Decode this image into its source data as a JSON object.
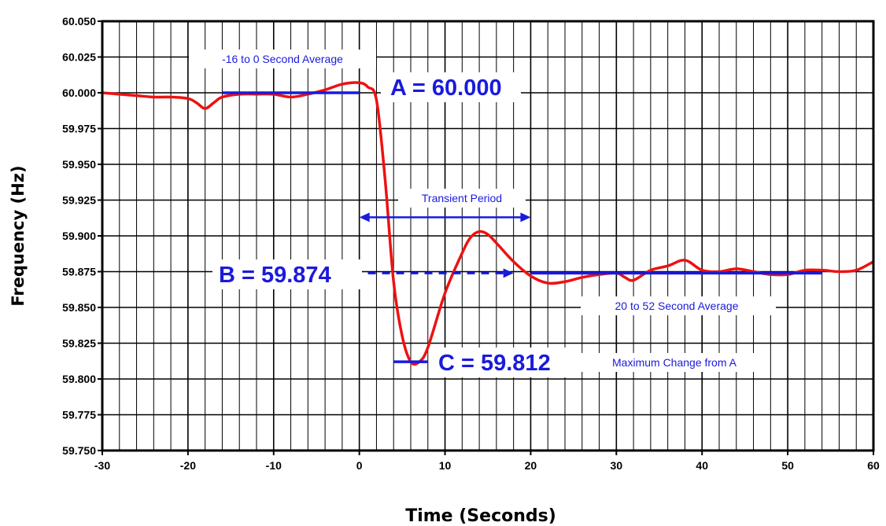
{
  "chart_data": {
    "type": "line",
    "title": "",
    "xlabel": "Time (Seconds)",
    "ylabel": "Frequency (Hz)",
    "xlim": [
      -30,
      60
    ],
    "ylim": [
      59.75,
      60.05
    ],
    "xticks": [
      -30,
      -20,
      -10,
      0,
      10,
      20,
      30,
      40,
      50,
      60
    ],
    "xtick_labels": [
      "-30",
      "-20",
      "-10",
      "0",
      "10",
      "20",
      "30",
      "40",
      "50",
      "60"
    ],
    "yticks": [
      60.05,
      60.025,
      60.0,
      59.975,
      59.95,
      59.925,
      59.9,
      59.875,
      59.85,
      59.825,
      59.8,
      59.775,
      59.75
    ],
    "ytick_labels": [
      "60.050",
      "60.025",
      "60.000",
      "59.975",
      "59.950",
      "59.925",
      "59.900",
      "59.875",
      "59.850",
      "59.825",
      "59.800",
      "59.775",
      "59.750"
    ],
    "grid": {
      "vertical_major": true,
      "vertical_minor_step": 2,
      "horizontal_major": true
    },
    "series": [
      {
        "color": "#ee1111",
        "x": [
          -30,
          -28,
          -26,
          -24,
          -22,
          -20,
          -19,
          -18,
          -17,
          -16,
          -14,
          -12,
          -10,
          -8,
          -6,
          -4,
          -2,
          0,
          1,
          2,
          3,
          4,
          5,
          6,
          7,
          8,
          10,
          12,
          13,
          14,
          15,
          16,
          18,
          20,
          22,
          24,
          26,
          28,
          30,
          31,
          32,
          34,
          36,
          38,
          40,
          42,
          44,
          46,
          48,
          50,
          52,
          54,
          56,
          58,
          60
        ],
        "y": [
          60.0,
          59.999,
          59.998,
          59.997,
          59.997,
          59.996,
          59.993,
          59.989,
          59.993,
          59.997,
          59.999,
          59.999,
          59.999,
          59.997,
          59.999,
          60.002,
          60.006,
          60.007,
          60.004,
          59.995,
          59.94,
          59.868,
          59.83,
          59.812,
          59.812,
          59.822,
          59.86,
          59.888,
          59.899,
          59.903,
          59.901,
          59.895,
          59.882,
          59.872,
          59.867,
          59.868,
          59.871,
          59.873,
          59.874,
          59.871,
          59.869,
          59.876,
          59.879,
          59.883,
          59.876,
          59.875,
          59.877,
          59.875,
          59.873,
          59.873,
          59.876,
          59.876,
          59.875,
          59.876,
          59.882
        ]
      }
    ],
    "reference_lines": [
      {
        "color": "#1a1adc",
        "x": [
          -16,
          0
        ],
        "y": 60.0,
        "style": "solid",
        "label": "-16 to 0 Second Average"
      },
      {
        "color": "#1a1adc",
        "x": [
          20,
          54
        ],
        "y": 59.874,
        "style": "solid",
        "label": "20 to 52 Second Average"
      },
      {
        "color": "#1a1adc",
        "x": [
          1,
          18
        ],
        "y": 59.874,
        "style": "dashed",
        "arrow": "end"
      },
      {
        "color": "#1a1adc",
        "x": [
          4,
          8
        ],
        "y": 59.812,
        "style": "solid"
      },
      {
        "color": "#1a1adc",
        "x": [
          0,
          20
        ],
        "y": 59.913,
        "style": "double-arrow",
        "label": "Transient Period"
      }
    ],
    "annotations": {
      "a_label": "A = 60.000",
      "b_label": "B = 59.874",
      "c_label": "C = 59.812",
      "avg_before_label": "-16 to 0 Second Average",
      "transient_label": "Transient Period",
      "avg_after_label": "20 to 52 Second Average",
      "max_change_label": "Maximum Change from A"
    },
    "colors": {
      "data_line": "#ee1111",
      "annotation": "#1a1adc",
      "grid": "#000000"
    }
  }
}
